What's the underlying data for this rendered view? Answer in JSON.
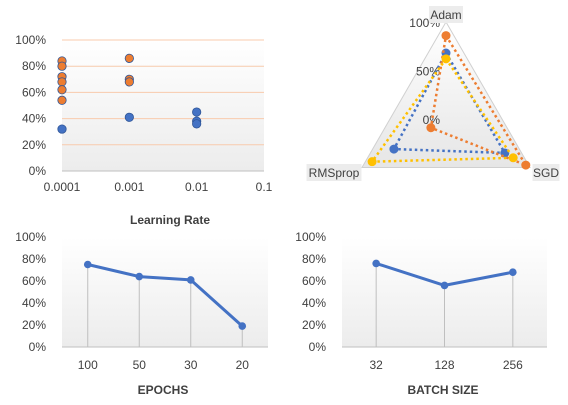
{
  "colors": {
    "blue": "#4472C4",
    "orange": "#ED7D31",
    "gold": "#FFC000",
    "grid": "#F8CBAD",
    "vline": "#BFBFBF"
  },
  "chart_data": [
    {
      "type": "scatter",
      "xlabel": "Learning Rate",
      "xscale": "log",
      "x_ticks": [
        "0.0001",
        "0.001",
        "0.01",
        "0.1"
      ],
      "y_ticks": [
        "0%",
        "20%",
        "40%",
        "60%",
        "80%",
        "100%"
      ],
      "ylim": [
        0,
        100
      ],
      "grid": "horizontal",
      "series": [
        {
          "color": "orange",
          "points": [
            {
              "x": 0.0001,
              "y": 84
            },
            {
              "x": 0.0001,
              "y": 80
            },
            {
              "x": 0.0001,
              "y": 72
            },
            {
              "x": 0.0001,
              "y": 68
            },
            {
              "x": 0.0001,
              "y": 62
            },
            {
              "x": 0.0001,
              "y": 54
            },
            {
              "x": 0.001,
              "y": 86
            },
            {
              "x": 0.001,
              "y": 70
            },
            {
              "x": 0.001,
              "y": 68
            }
          ]
        },
        {
          "color": "blue",
          "points": [
            {
              "x": 0.0001,
              "y": 32
            },
            {
              "x": 0.001,
              "y": 41
            },
            {
              "x": 0.01,
              "y": 45
            },
            {
              "x": 0.01,
              "y": 38
            },
            {
              "x": 0.01,
              "y": 36
            }
          ]
        }
      ]
    },
    {
      "type": "radar",
      "axes": [
        "Adam",
        "SGD",
        "RMSprop"
      ],
      "r_ticks": [
        "0%",
        "50%",
        "100%"
      ],
      "rlim": [
        0,
        100
      ],
      "series": [
        {
          "color": "blue",
          "values": [
            68,
            70,
            62
          ]
        },
        {
          "color": "orange",
          "values": [
            86,
            95,
            18
          ]
        },
        {
          "color": "gold",
          "values": [
            62,
            80,
            88
          ]
        }
      ]
    },
    {
      "type": "line",
      "xlabel": "EPOCHS",
      "categories": [
        "100",
        "50",
        "30",
        "20"
      ],
      "values": [
        75,
        64,
        61,
        19
      ],
      "y_ticks": [
        "0%",
        "20%",
        "40%",
        "60%",
        "80%",
        "100%"
      ],
      "ylim": [
        0,
        100
      ]
    },
    {
      "type": "line",
      "xlabel": "BATCH SIZE",
      "categories": [
        "32",
        "128",
        "256"
      ],
      "values": [
        76,
        56,
        68
      ],
      "y_ticks": [
        "0%",
        "20%",
        "40%",
        "60%",
        "80%",
        "100%"
      ],
      "ylim": [
        0,
        100
      ]
    }
  ]
}
